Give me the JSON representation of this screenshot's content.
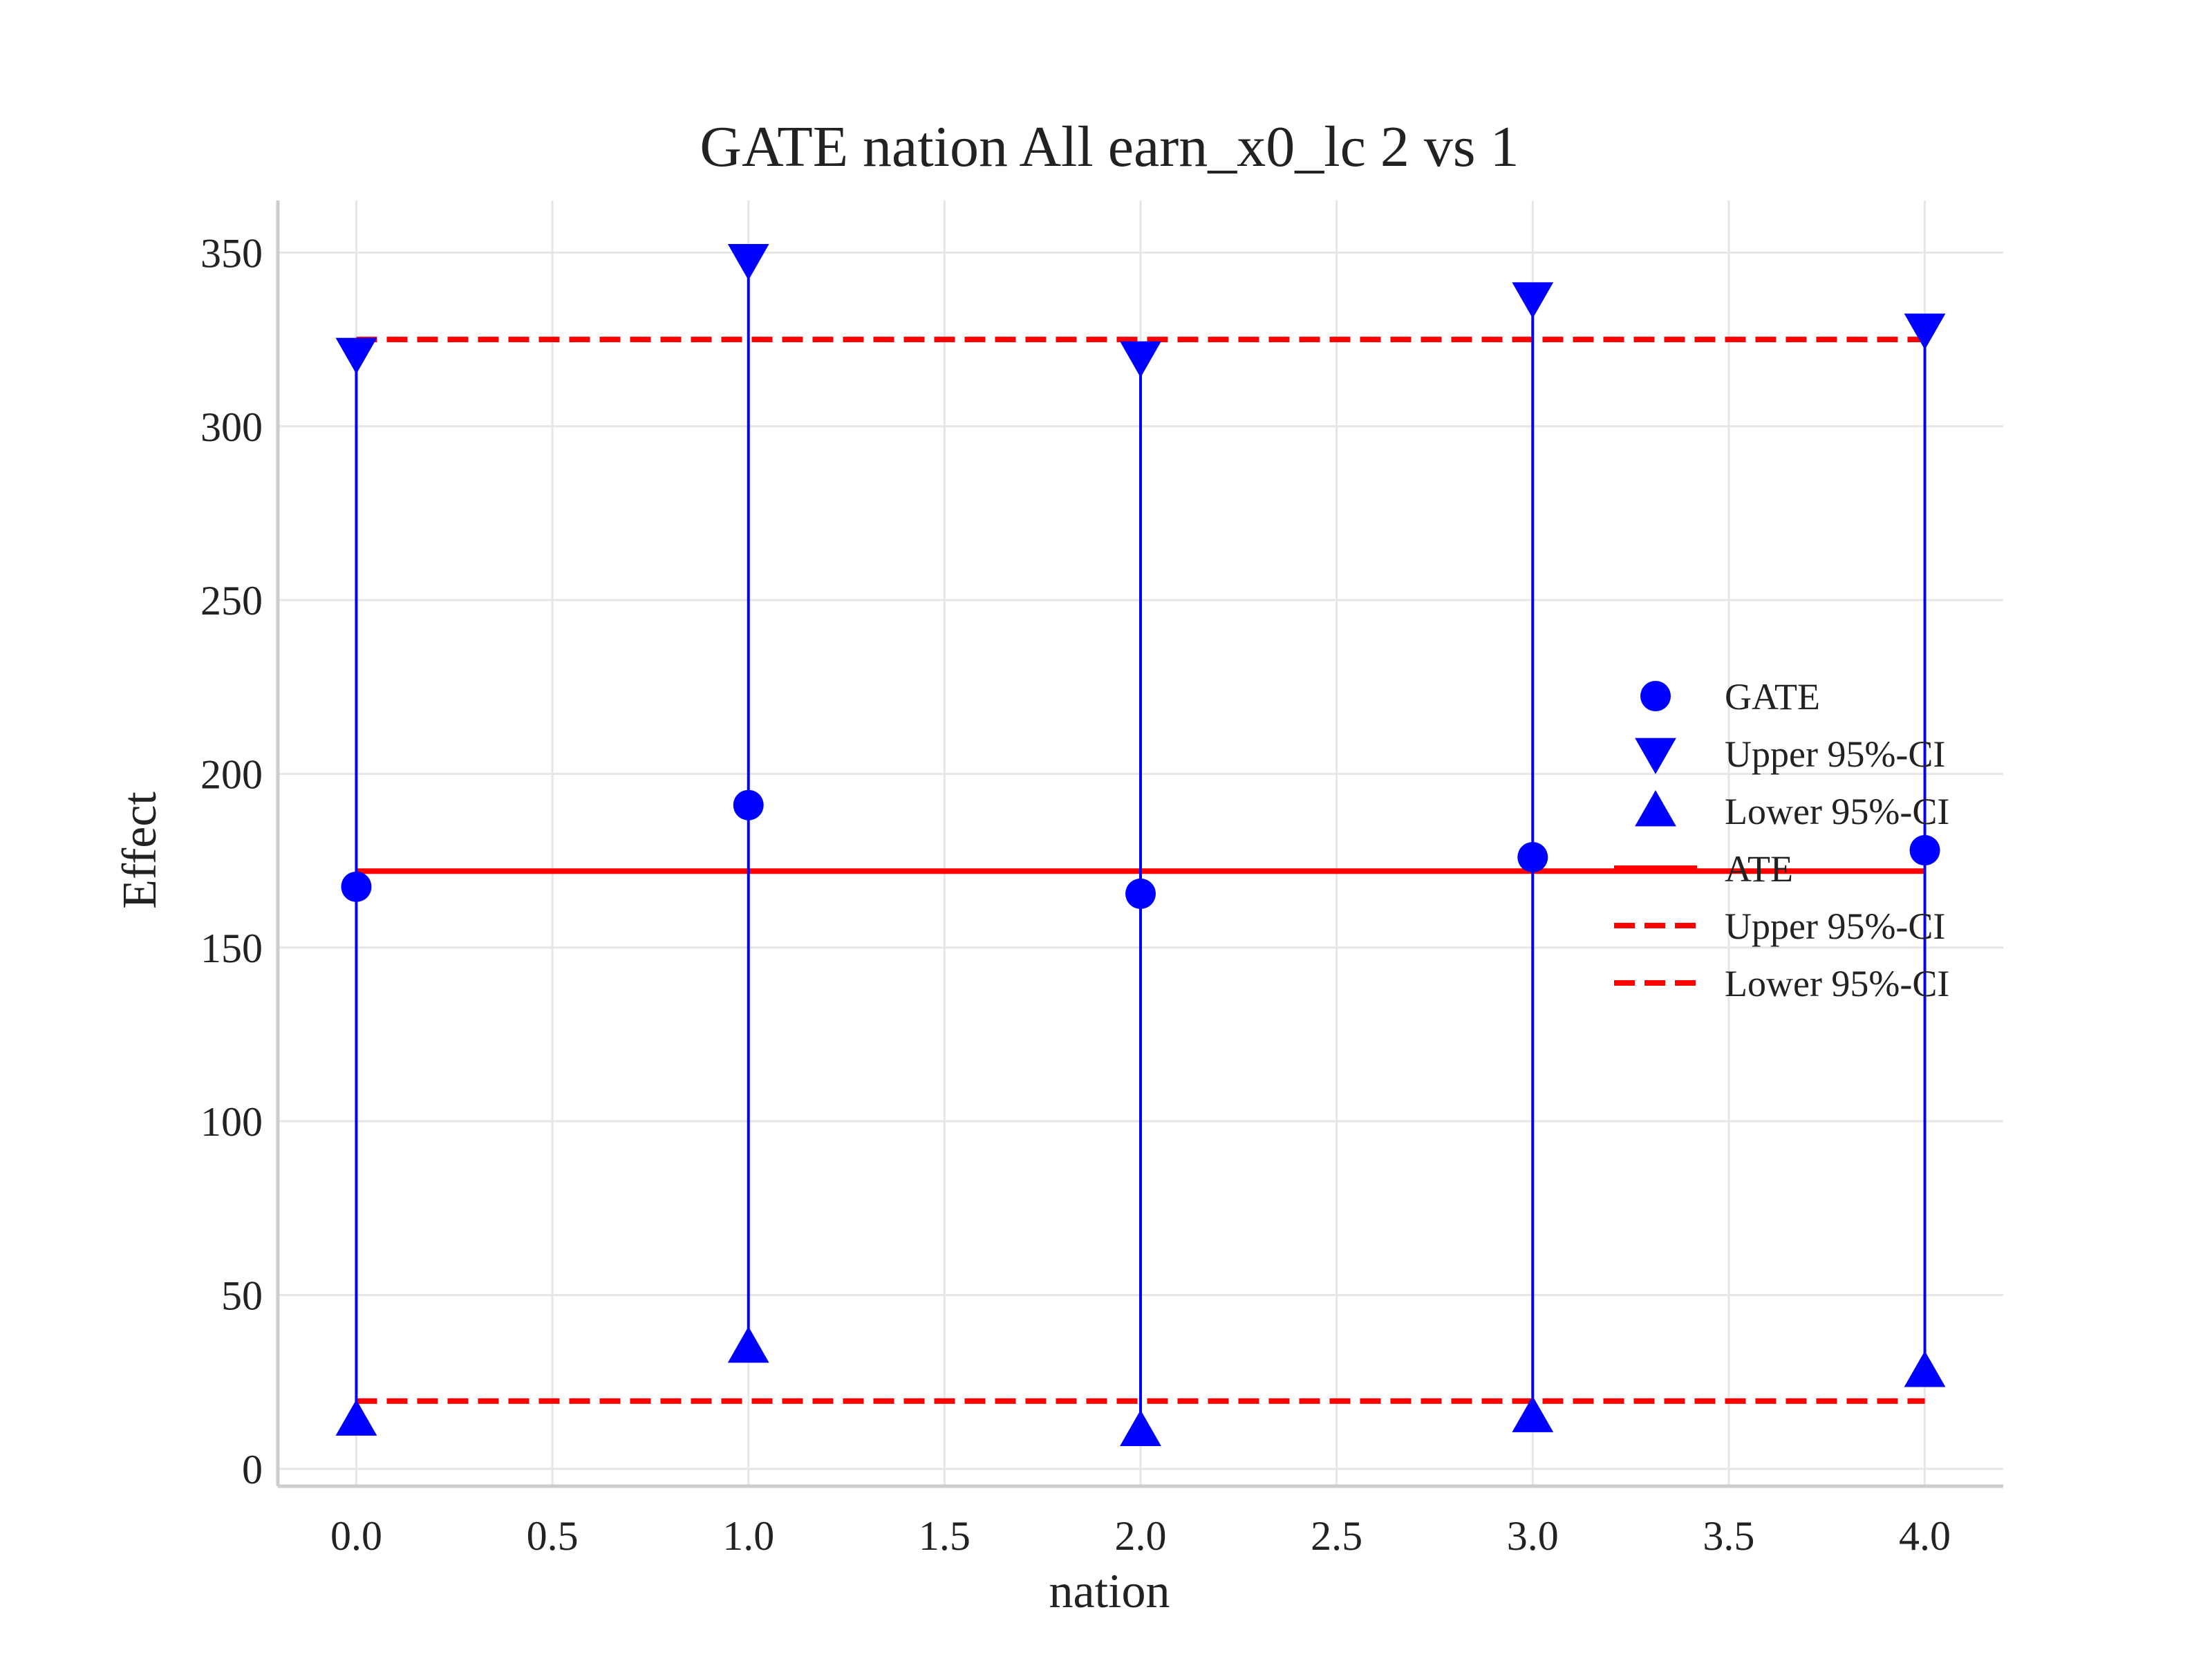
{
  "chart_data": {
    "type": "scatter",
    "title": "GATE nation All earn_x0_lc  2 vs 1",
    "xlabel": "nation",
    "ylabel": "Effect",
    "xlim": [
      -0.2,
      4.2
    ],
    "ylim": [
      -5,
      365
    ],
    "x_ticks": [
      0.0,
      0.5,
      1.0,
      1.5,
      2.0,
      2.5,
      3.0,
      3.5,
      4.0
    ],
    "x_tick_labels": [
      "0.0",
      "0.5",
      "1.0",
      "1.5",
      "2.0",
      "2.5",
      "3.0",
      "3.5",
      "4.0"
    ],
    "y_ticks": [
      0,
      50,
      100,
      150,
      200,
      250,
      300,
      350
    ],
    "y_tick_labels": [
      "0",
      "50",
      "100",
      "150",
      "200",
      "250",
      "300",
      "350"
    ],
    "grid": true,
    "legend_position": "center-right",
    "x": [
      0,
      1,
      2,
      3,
      4
    ],
    "series": [
      {
        "name": "GATE",
        "marker": "circle",
        "color": "#0000ff",
        "values": [
          167.5,
          191,
          165.5,
          176,
          178
        ]
      },
      {
        "name": "Upper 95%-CI",
        "marker": "triangle-down",
        "color": "#0000ff",
        "values": [
          321,
          348,
          320,
          337,
          328
        ]
      },
      {
        "name": "Lower 95%-CI",
        "marker": "triangle-up",
        "color": "#0000ff",
        "values": [
          14,
          35,
          11,
          15,
          28
        ]
      }
    ],
    "reference_lines": [
      {
        "name": "ATE",
        "style": "solid",
        "color": "#ff0000",
        "value": 172
      },
      {
        "name": "Upper 95%-CI",
        "style": "dashed",
        "color": "#ff0000",
        "value": 325
      },
      {
        "name": "Lower 95%-CI",
        "style": "dashed",
        "color": "#ff0000",
        "value": 19.5
      }
    ],
    "colors": {
      "marker": "#0000ff",
      "reference": "#ff0000",
      "grid": "#e6e6e6",
      "spine": "#cccccc"
    }
  }
}
